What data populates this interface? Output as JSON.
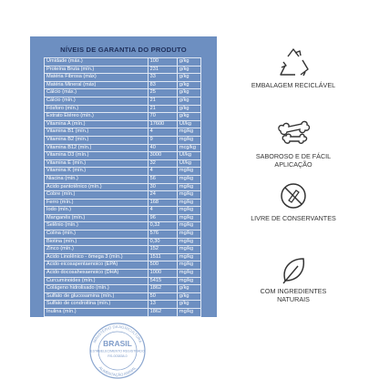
{
  "table": {
    "title": "NÍVEIS DE GARANTIA DO PRODUTO",
    "rows": [
      [
        "Umidade (máx.)",
        "100",
        "g/kg"
      ],
      [
        "Proteína Bruta (mín.)",
        "231",
        "g/kg"
      ],
      [
        "Matéria Fibrosa (máx)",
        "33",
        "g/kg"
      ],
      [
        "Matéria Mineral (máx)",
        "83",
        "g/kg"
      ],
      [
        "Cálcio (máx.)",
        "25",
        "g/kg"
      ],
      [
        "Cálcio (mín.)",
        "21",
        "g/kg"
      ],
      [
        "Fósforo (mín.)",
        "21",
        "g/kg"
      ],
      [
        "Extrato Etéreo (mín.)",
        "70",
        "g/kg"
      ],
      [
        "Vitamina A (mín.)",
        "17600",
        "UI/kg"
      ],
      [
        "Vitamina B1 (mín.)",
        "4",
        "mg/kg"
      ],
      [
        "Vitamina B2 (mín.)",
        "9",
        "mg/kg"
      ],
      [
        "Vitamina B12 (mín.)",
        "40",
        "mcg/kg"
      ],
      [
        "Vitamina D3 (mín.)",
        "3000",
        "UI/kg"
      ],
      [
        "Vitamina E (mín.)",
        "32",
        "UI/kg"
      ],
      [
        "Vitamina K (mín.)",
        "4",
        "mg/kg"
      ],
      [
        "Niacina (mín.)",
        "56",
        "mg/kg"
      ],
      [
        "Ácido pantotênico (mín.)",
        "30",
        "mg/kg"
      ],
      [
        "Cobre (mín.)",
        "24",
        "mg/kg"
      ],
      [
        "Ferro (mín.)",
        "168",
        "mg/kg"
      ],
      [
        "Iodo (mín.)",
        "4",
        "mg/kg"
      ],
      [
        "Manganês (mín.)",
        "96",
        "mg/kg"
      ],
      [
        "Selênio (mín.)",
        "0,32",
        "mg/kg"
      ],
      [
        "Colina (mín.)",
        "576",
        "mg/kg"
      ],
      [
        "Biotina (mín.)",
        "0,30",
        "mg/kg"
      ],
      [
        "Zinco (mín.)",
        "152",
        "mg/kg"
      ],
      [
        "Ácido Linolênico - ômega 3 (mín.)",
        "1511",
        "mg/kg"
      ],
      [
        "Ácido eicosapentaenoico (EPA)",
        "500",
        "mg/kg"
      ],
      [
        "Ácido docosahexaenoico (DHA)",
        "1000",
        "mg/kg"
      ],
      [
        "Curcuminoides (mín.)",
        "5415",
        "mg/kg"
      ],
      [
        "Colágeno hidrolisado (mín.)",
        "1862",
        "g/kg"
      ],
      [
        "Sulfato de glucosamina (mín.)",
        "50",
        "g/kg"
      ],
      [
        "Sulfato de condroitina (mín.)",
        "13",
        "g/kg"
      ],
      [
        "Inulina (mín.)",
        "1862",
        "mg/kg"
      ]
    ]
  },
  "stamp": {
    "top": "MINISTÉRIO DA AGRICULTURA",
    "country": "BRASIL",
    "registered": "ESTABELECIMENTO REGISTRADO",
    "code": "RS-003838-0",
    "bottom": "ALIMENTAÇÃO ANIMAL"
  },
  "features": [
    {
      "label": "EMBALAGEM RECICLÁVEL"
    },
    {
      "label": "SABOROSO E DE FÁCIL APLICAÇÃO"
    },
    {
      "label": "LIVRE DE CONSERVANTES"
    },
    {
      "label": "COM INGREDIENTES NATURAIS"
    }
  ]
}
